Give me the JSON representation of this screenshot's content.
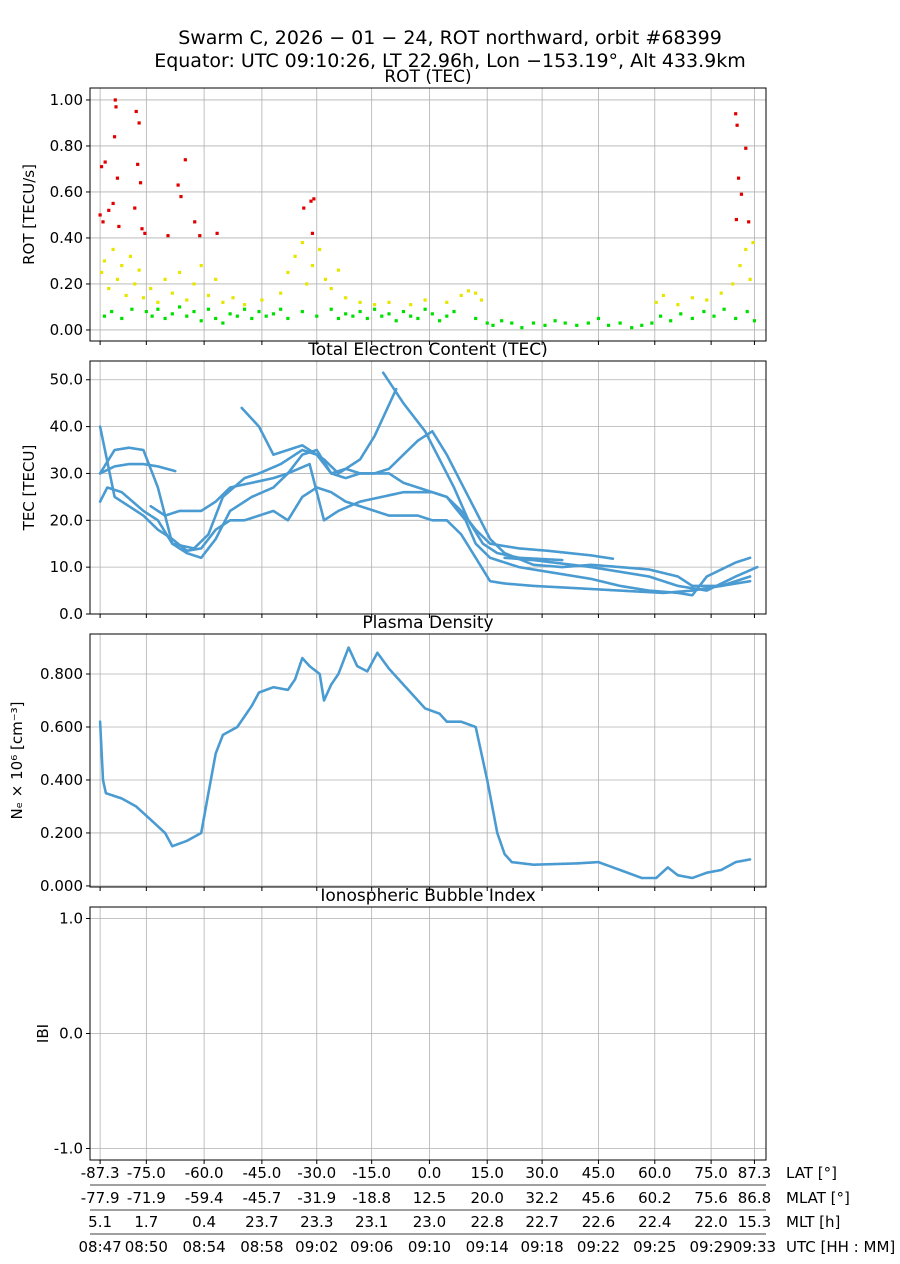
{
  "title": "Swarm C, 2026 − 01 − 24, ROT northward, orbit #68399",
  "subtitle": "Equator: UTC 09:10:26, LT 22.96h, Lon −153.19°, Alt 433.9km",
  "x_axis": {
    "xlim": [
      -0.7,
      46.1
    ],
    "xticks": [
      0,
      3.2,
      7.2,
      11.2,
      15.0,
      18.8,
      22.8,
      26.8,
      30.6,
      34.5,
      38.4,
      42.3,
      45.3
    ],
    "rows": [
      {
        "name": "LAT [°]",
        "labels": [
          "-87.3",
          "-75.0",
          "-60.0",
          "-45.0",
          "-30.0",
          "-15.0",
          "0.0",
          "15.0",
          "30.0",
          "45.0",
          "60.0",
          "75.0",
          "87.3"
        ]
      },
      {
        "name": "MLAT [°]",
        "labels": [
          "-77.9",
          "-71.9",
          "-59.4",
          "-45.7",
          "-31.9",
          "-18.8",
          "12.5",
          "20.0",
          "32.2",
          "45.6",
          "60.2",
          "75.6",
          "86.8"
        ]
      },
      {
        "name": "MLT [h]",
        "labels": [
          "5.1",
          "1.7",
          "0.4",
          "23.7",
          "23.3",
          "23.1",
          "23.0",
          "22.8",
          "22.7",
          "22.6",
          "22.4",
          "22.0",
          "15.3"
        ]
      },
      {
        "name": "UTC [HH : MM]",
        "labels": [
          "08:47",
          "08:50",
          "08:54",
          "08:58",
          "09:02",
          "09:06",
          "09:10",
          "09:14",
          "09:18",
          "09:22",
          "09:25",
          "09:29",
          "09:33"
        ]
      }
    ]
  },
  "chart_data": [
    {
      "type": "scatter",
      "title": "ROT (TEC)",
      "ylabel": "ROT [TECU/s]",
      "ylim": [
        -0.048,
        1.052
      ],
      "grid": true,
      "yticks": [
        {
          "value": 0,
          "label": "0.00"
        },
        {
          "value": 0.2,
          "label": "0.20"
        },
        {
          "value": 0.4,
          "label": "0.40"
        },
        {
          "value": 0.6,
          "label": "0.60"
        },
        {
          "value": 0.8,
          "label": "0.80"
        },
        {
          "value": 1,
          "label": "1.00"
        }
      ],
      "series": [
        {
          "color": "#00e000",
          "x": [
            0.3,
            0.8,
            1.5,
            2.2,
            3.2,
            3.6,
            4.0,
            4.5,
            5.0,
            5.5,
            6.0,
            6.5,
            7.0,
            7.5,
            8.0,
            8.5,
            9.0,
            9.5,
            10.0,
            10.5,
            11.0,
            11.5,
            12.0,
            12.5,
            13.0,
            14.0,
            15.0,
            16.0,
            16.5,
            17.0,
            17.5,
            18.0,
            18.5,
            19.0,
            19.5,
            20.0,
            20.5,
            21.0,
            21.5,
            22.0,
            22.5,
            23.0,
            23.5,
            24.0,
            24.5,
            26.0,
            26.8,
            27.2,
            27.8,
            28.5,
            29.2,
            30.0,
            30.8,
            31.5,
            32.2,
            33.0,
            33.8,
            34.5,
            35.2,
            36.0,
            36.8,
            37.5,
            38.2,
            38.8,
            39.5,
            40.2,
            41.0,
            41.8,
            42.5,
            43.2,
            44.0,
            44.8,
            45.3
          ],
          "values": [
            0.06,
            0.08,
            0.05,
            0.09,
            0.08,
            0.06,
            0.09,
            0.05,
            0.07,
            0.1,
            0.06,
            0.08,
            0.04,
            0.09,
            0.05,
            0.03,
            0.07,
            0.06,
            0.09,
            0.05,
            0.08,
            0.06,
            0.07,
            0.09,
            0.05,
            0.08,
            0.06,
            0.09,
            0.05,
            0.07,
            0.06,
            0.08,
            0.05,
            0.09,
            0.06,
            0.07,
            0.04,
            0.08,
            0.06,
            0.05,
            0.09,
            0.07,
            0.04,
            0.06,
            0.08,
            0.05,
            0.03,
            0.02,
            0.04,
            0.03,
            0.01,
            0.03,
            0.02,
            0.04,
            0.03,
            0.02,
            0.03,
            0.05,
            0.02,
            0.03,
            0.01,
            0.02,
            0.03,
            0.06,
            0.04,
            0.07,
            0.05,
            0.08,
            0.06,
            0.09,
            0.05,
            0.08,
            0.04
          ]
        },
        {
          "color": "#e6e600",
          "x": [
            0.1,
            0.3,
            0.6,
            0.9,
            1.2,
            1.5,
            1.8,
            2.1,
            2.4,
            2.7,
            3.0,
            3.5,
            4.0,
            4.5,
            5.0,
            5.5,
            6.0,
            6.5,
            7.0,
            7.5,
            8.0,
            8.5,
            9.2,
            10.0,
            11.2,
            12.5,
            13.0,
            13.5,
            14.0,
            14.3,
            14.7,
            15.2,
            15.6,
            16.0,
            16.5,
            17.0,
            18.0,
            19.0,
            20.0,
            21.5,
            22.5,
            24.0,
            25.0,
            25.5,
            26.0,
            26.4,
            38.5,
            39.0,
            40.0,
            41.0,
            42.0,
            43.0,
            43.8,
            44.3,
            44.7,
            45.0,
            45.2
          ],
          "values": [
            0.25,
            0.3,
            0.18,
            0.35,
            0.22,
            0.28,
            0.15,
            0.32,
            0.2,
            0.26,
            0.14,
            0.18,
            0.12,
            0.22,
            0.16,
            0.25,
            0.13,
            0.2,
            0.28,
            0.15,
            0.22,
            0.12,
            0.14,
            0.11,
            0.13,
            0.16,
            0.25,
            0.32,
            0.38,
            0.2,
            0.28,
            0.35,
            0.22,
            0.18,
            0.26,
            0.14,
            0.12,
            0.11,
            0.12,
            0.11,
            0.13,
            0.12,
            0.15,
            0.17,
            0.16,
            0.13,
            0.12,
            0.15,
            0.11,
            0.14,
            0.13,
            0.16,
            0.2,
            0.28,
            0.35,
            0.22,
            0.38
          ]
        },
        {
          "color": "#e00000",
          "x": [
            0,
            0.1,
            0.2,
            0.35,
            0.6,
            0.9,
            1.0,
            1.05,
            1.1,
            1.2,
            1.3,
            2.4,
            2.5,
            2.6,
            2.7,
            2.8,
            2.9,
            3.1,
            4.7,
            5.4,
            5.6,
            5.9,
            6.55,
            6.9,
            8.1,
            14.1,
            14.6,
            14.8,
            14.7,
            44.0,
            44.1,
            44.2,
            44.4,
            44.7,
            44.9,
            44.05
          ],
          "values": [
            0.5,
            0.71,
            0.47,
            0.73,
            0.52,
            0.55,
            0.84,
            1.0,
            0.97,
            0.66,
            0.45,
            0.53,
            0.95,
            0.72,
            0.9,
            0.64,
            0.44,
            0.42,
            0.41,
            0.63,
            0.58,
            0.74,
            0.47,
            0.41,
            0.42,
            0.53,
            0.56,
            0.57,
            0.42,
            0.94,
            0.89,
            0.66,
            0.59,
            0.79,
            0.47,
            0.48
          ]
        }
      ]
    },
    {
      "type": "line",
      "title": "Total Electron Content (TEC)",
      "ylabel": "TEC [TECU]",
      "ylim": [
        0,
        54
      ],
      "grid": true,
      "yticks": [
        {
          "value": 0,
          "label": "0.0"
        },
        {
          "value": 10,
          "label": "10.0"
        },
        {
          "value": 20,
          "label": "20.0"
        },
        {
          "value": 30,
          "label": "30.0"
        },
        {
          "value": 40,
          "label": "40.0"
        },
        {
          "value": 50,
          "label": "50.0"
        }
      ],
      "series": [
        {
          "color": "#4a9bd1",
          "x": [
            0,
            1,
            2,
            3,
            4,
            5.2
          ],
          "values": [
            30,
            31.5,
            32,
            32,
            31.5,
            30.5
          ]
        },
        {
          "color": "#4a9bd1",
          "x": [
            0,
            1,
            2,
            3,
            4,
            5,
            6.5,
            7.5,
            8.5,
            10,
            11,
            12.5,
            14,
            15,
            16,
            17,
            18,
            19,
            20.5
          ],
          "values": [
            30,
            35,
            35.5,
            35,
            27,
            15,
            14,
            17,
            25,
            29,
            30,
            32,
            35,
            34,
            30,
            31,
            33,
            38,
            48
          ]
        },
        {
          "color": "#4a9bd1",
          "x": [
            0,
            0.5,
            1.5,
            3,
            4,
            5,
            6,
            7,
            8,
            9,
            10.5,
            12,
            13,
            14,
            15,
            16,
            17,
            18,
            19,
            20,
            21,
            22,
            23,
            24,
            25,
            26,
            27,
            28,
            30,
            32,
            34,
            36,
            38,
            40,
            41,
            43,
            45
          ],
          "values": [
            24,
            27,
            26,
            22,
            20,
            15,
            13,
            12,
            16,
            22,
            25,
            27,
            30,
            34,
            35,
            30,
            29,
            30,
            30,
            31,
            34,
            37,
            39,
            34,
            28,
            22,
            16,
            13,
            10.5,
            10,
            10.5,
            10,
            9.5,
            8,
            6,
            6,
            8
          ]
        },
        {
          "color": "#4a9bd1",
          "x": [
            0,
            1,
            2,
            3,
            4,
            5,
            6,
            7,
            8,
            9,
            10,
            11,
            12,
            13,
            14,
            15,
            16,
            17,
            18,
            19,
            20,
            21,
            22,
            23,
            24,
            25,
            26,
            27,
            28,
            30,
            33,
            36,
            39,
            41,
            43,
            45
          ],
          "values": [
            40,
            25,
            23,
            21,
            18,
            16,
            13.5,
            14,
            18,
            20,
            20,
            21,
            22,
            20,
            25,
            27,
            26,
            24,
            23,
            22,
            21,
            21,
            21,
            20,
            20,
            17,
            12,
            7,
            6.5,
            6,
            5.5,
            5,
            4.5,
            5,
            6,
            7
          ]
        },
        {
          "color": "#4a9bd1",
          "x": [
            3.5,
            4.5,
            5.5,
            7,
            8,
            9,
            10.5,
            12,
            13,
            14.5,
            15.5,
            16.5,
            18,
            19.5,
            21,
            22,
            23,
            24,
            25,
            26,
            27,
            28,
            29,
            31,
            34,
            35.5
          ],
          "values": [
            23,
            21,
            22,
            22,
            24,
            27,
            28,
            29,
            30,
            32,
            20,
            22,
            24,
            25,
            26,
            26,
            26,
            25,
            22,
            18,
            15,
            14.5,
            14,
            13.5,
            12.5,
            11.8
          ]
        },
        {
          "color": "#4a9bd1",
          "x": [
            9.8,
            11,
            12,
            13,
            14,
            15.5,
            16.5,
            17,
            18,
            19,
            20,
            21,
            22,
            23,
            24,
            24.5,
            25.3,
            26,
            27,
            28,
            29,
            30,
            32,
            34,
            36,
            38,
            40,
            41,
            42,
            44,
            45
          ],
          "values": [
            44,
            40,
            34,
            35,
            36,
            33,
            30,
            31,
            30,
            30,
            30,
            28,
            27,
            26,
            25,
            23,
            20,
            15,
            12,
            11,
            10,
            9.5,
            8.5,
            7.5,
            6,
            5,
            4.5,
            4,
            8,
            11,
            12
          ]
        },
        {
          "color": "#4a9bd1",
          "x": [
            19.6,
            21,
            22.5,
            23.5,
            24.5,
            25.5,
            26.5,
            27.5,
            29,
            32
          ],
          "values": [
            51.5,
            45,
            39,
            33,
            27,
            20,
            15,
            13,
            12,
            11.5
          ]
        },
        {
          "color": "#4a9bd1",
          "x": [
            28,
            30,
            34,
            36,
            38,
            40,
            42,
            44,
            45.5
          ],
          "values": [
            12,
            11.5,
            10,
            9,
            8,
            6,
            5,
            8,
            10
          ]
        }
      ]
    },
    {
      "type": "line",
      "title": "Plasma Density",
      "ylabel": "Nₑ × 10⁶ [cm⁻³]",
      "ylim": [
        -0.004,
        0.951
      ],
      "grid": true,
      "yticks": [
        {
          "value": 0,
          "label": "0.000"
        },
        {
          "value": 0.2,
          "label": "0.200"
        },
        {
          "value": 0.4,
          "label": "0.400"
        },
        {
          "value": 0.6,
          "label": "0.600"
        },
        {
          "value": 0.8,
          "label": "0.800"
        }
      ],
      "series": [
        {
          "color": "#4a9bd1",
          "x": [
            0,
            0.2,
            0.4,
            1.5,
            2.5,
            3.5,
            4.5,
            5,
            6,
            7,
            7.5,
            8,
            8.5,
            9.5,
            10.5,
            11,
            12,
            13,
            13.5,
            14,
            14.5,
            15.2,
            15.5,
            16,
            16.5,
            17.2,
            17.8,
            18.5,
            19.2,
            20,
            21,
            22,
            22.5,
            23.5,
            24,
            25,
            26,
            26.8,
            27.5,
            28,
            28.5,
            30,
            33,
            34.5,
            36,
            37.5,
            38.5,
            39.3,
            40,
            41,
            42,
            43,
            44,
            45
          ],
          "values": [
            0.62,
            0.4,
            0.35,
            0.33,
            0.3,
            0.25,
            0.2,
            0.15,
            0.17,
            0.2,
            0.35,
            0.5,
            0.57,
            0.6,
            0.68,
            0.73,
            0.75,
            0.74,
            0.78,
            0.86,
            0.83,
            0.8,
            0.7,
            0.76,
            0.8,
            0.9,
            0.83,
            0.81,
            0.88,
            0.82,
            0.76,
            0.7,
            0.67,
            0.65,
            0.62,
            0.62,
            0.6,
            0.4,
            0.2,
            0.12,
            0.09,
            0.08,
            0.085,
            0.09,
            0.06,
            0.03,
            0.03,
            0.07,
            0.04,
            0.03,
            0.05,
            0.06,
            0.09,
            0.1
          ]
        }
      ]
    },
    {
      "type": "line",
      "title": "Ionospheric Bubble Index",
      "ylabel": "IBI",
      "ylim": [
        -1.1,
        1.1
      ],
      "grid": true,
      "yticks": [
        {
          "value": -1,
          "label": "-1.0"
        },
        {
          "value": 0,
          "label": "0.0"
        },
        {
          "value": 1,
          "label": "1.0"
        }
      ],
      "series": []
    }
  ]
}
